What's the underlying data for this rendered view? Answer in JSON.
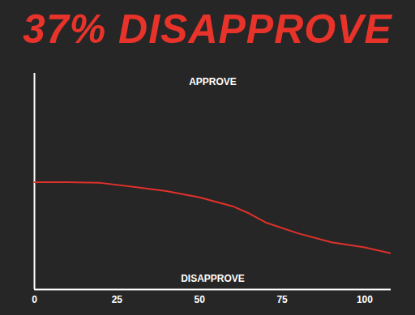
{
  "chart_data": {
    "type": "line",
    "title": "37% DISAPPROVE",
    "annotations": [
      "APPROVE",
      "DISAPPROVE"
    ],
    "x": [
      0,
      10,
      20,
      30,
      40,
      50,
      60,
      65,
      70,
      80,
      90,
      100,
      108
    ],
    "values": [
      49.6,
      49.6,
      49.3,
      47.5,
      45.5,
      42.6,
      38.5,
      35.2,
      31,
      25.9,
      21.8,
      19.5,
      16.7
    ],
    "color": "#e0312b",
    "xlim": [
      0,
      108
    ],
    "xticks": [
      0,
      25,
      50,
      75,
      100
    ],
    "ylim": [
      0,
      100
    ],
    "tick_labels": "x",
    "grid": false
  }
}
